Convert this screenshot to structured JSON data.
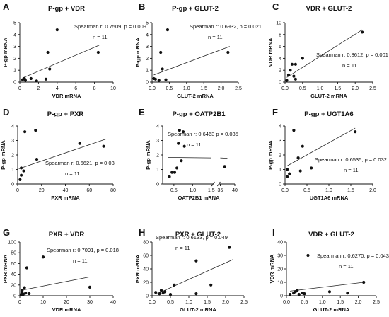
{
  "chart_data": [
    {
      "panel": "A",
      "type": "scatter",
      "title": "P-gp + VDR",
      "xlabel": "VDR mRNA",
      "ylabel": "P-gp mRNA",
      "xlim": [
        0,
        10
      ],
      "ylim": [
        0,
        5
      ],
      "xticks": [
        0,
        2,
        4,
        6,
        8,
        10
      ],
      "yticks": [
        0,
        1,
        2,
        3,
        4,
        5
      ],
      "points": [
        [
          0.3,
          0.2
        ],
        [
          0.5,
          0.3
        ],
        [
          1.2,
          0.3
        ],
        [
          1.8,
          0.1
        ],
        [
          2.8,
          0.25
        ],
        [
          3,
          2.5
        ],
        [
          3.2,
          1.1
        ],
        [
          4,
          4.4
        ],
        [
          8.4,
          2.5
        ],
        [
          0.6,
          0.15
        ]
      ],
      "regression": [
        [
          0.3,
          0.35
        ],
        [
          8.5,
          3.1
        ]
      ],
      "stats": {
        "r": "Spearman r: 0.7509, p = 0.009",
        "n": "n = 11"
      }
    },
    {
      "panel": "B",
      "type": "scatter",
      "title": "P-gp + GLUT-2",
      "xlabel": "GLUT-2 mRNA",
      "ylabel": "P-gp mRNA",
      "xlim": [
        0,
        2.5
      ],
      "ylim": [
        0,
        5
      ],
      "xticks": [
        0.0,
        0.5,
        1.0,
        1.5,
        2.0,
        2.5
      ],
      "yticks": [
        0,
        1,
        2,
        3,
        4,
        5
      ],
      "points": [
        [
          0.05,
          0.3
        ],
        [
          0.1,
          0.25
        ],
        [
          0.2,
          0.15
        ],
        [
          0.25,
          2.5
        ],
        [
          0.3,
          1.1
        ],
        [
          0.4,
          0.2
        ],
        [
          0.45,
          4.4
        ],
        [
          2.2,
          2.5
        ]
      ],
      "regression": [
        [
          0.05,
          0.6
        ],
        [
          2.25,
          3.0
        ]
      ],
      "stats": {
        "r": "Spearman r: 0.6932, p = 0.021",
        "n": "n = 11"
      }
    },
    {
      "panel": "C",
      "type": "scatter",
      "title": "VDR + GLUT-2",
      "xlabel": "GLUT-2 mRNA",
      "ylabel": "VDR mRNA",
      "xlim": [
        0,
        2.5
      ],
      "ylim": [
        0,
        10
      ],
      "xticks": [
        0.0,
        0.5,
        1.0,
        1.5,
        2.0,
        2.5
      ],
      "yticks": [
        0,
        2,
        4,
        6,
        8,
        10
      ],
      "points": [
        [
          0.05,
          0.3
        ],
        [
          0.1,
          1.2
        ],
        [
          0.15,
          2
        ],
        [
          0.2,
          3
        ],
        [
          0.25,
          1
        ],
        [
          0.3,
          3
        ],
        [
          0.3,
          0.5
        ],
        [
          0.5,
          4
        ],
        [
          2.2,
          8.4
        ]
      ],
      "regression": [
        [
          0.05,
          0.8
        ],
        [
          2.2,
          8.8
        ]
      ],
      "stats": {
        "r": "Spearman r: 0.8612, p = 0.001",
        "n": "n = 11"
      }
    },
    {
      "panel": "D",
      "type": "scatter",
      "title": "P-gp + PXR",
      "xlabel": "PXR mRNA",
      "ylabel": "P-gp mRNA",
      "xlim": [
        0,
        80
      ],
      "ylim": [
        0,
        4
      ],
      "xticks": [
        0,
        20,
        40,
        60,
        80
      ],
      "yticks": [
        0,
        1,
        2,
        3,
        4
      ],
      "points": [
        [
          2,
          0.3
        ],
        [
          3,
          0.6
        ],
        [
          3,
          1.1
        ],
        [
          5,
          0.9
        ],
        [
          6,
          3.6
        ],
        [
          15,
          3.7
        ],
        [
          16,
          1.7
        ],
        [
          52,
          2.8
        ],
        [
          72,
          2.6
        ]
      ],
      "regression": [
        [
          1,
          1.05
        ],
        [
          74,
          3.1
        ]
      ],
      "stats": {
        "r": "Spearman r: 0.6621, p = 0.03",
        "n": "n = 11"
      }
    },
    {
      "panel": "E",
      "type": "scatter",
      "title": "P-gp + OATP2B1",
      "xlabel": "OATP2B1 mRNA",
      "ylabel": "P-gp mRNA",
      "xlim": [
        0.2,
        40
      ],
      "ylim": [
        0,
        4
      ],
      "broken_x_axis": true,
      "xticks": [
        "0.5",
        "1.0",
        "1.5",
        "35",
        "40"
      ],
      "yticks": [
        0,
        1,
        2,
        3,
        4
      ],
      "points": [
        [
          0.38,
          0.5
        ],
        [
          0.45,
          0.8
        ],
        [
          0.52,
          0.8
        ],
        [
          0.58,
          1.1
        ],
        [
          0.62,
          2.8
        ],
        [
          0.65,
          3.7
        ],
        [
          0.7,
          1.6
        ],
        [
          0.75,
          3.6
        ],
        [
          0.78,
          2.6
        ],
        [
          36.5,
          1.2
        ]
      ],
      "regression": [
        [
          0.35,
          1.83
        ],
        [
          1.5,
          1.8
        ],
        [
          35,
          1.8
        ]
      ],
      "stats": {
        "r": "Spearman r: 0.6463 p = 0.035",
        "n": "n = 11"
      }
    },
    {
      "panel": "F",
      "type": "scatter",
      "title": "P-gp + UGT1A6",
      "xlabel": "UGT1A6 mRNA",
      "ylabel": "P-gp mRNA",
      "xlim": [
        0,
        2.0
      ],
      "ylim": [
        0,
        4
      ],
      "xticks": [
        0.0,
        0.5,
        1.0,
        1.5,
        2.0
      ],
      "yticks": [
        0,
        1,
        2,
        3,
        4
      ],
      "points": [
        [
          0.05,
          1.0
        ],
        [
          0.05,
          0.5
        ],
        [
          0.1,
          0.7
        ],
        [
          0.2,
          3.7
        ],
        [
          0.3,
          1.8
        ],
        [
          0.35,
          0.9
        ],
        [
          0.4,
          2.6
        ],
        [
          0.6,
          1.1
        ],
        [
          1.6,
          3.6
        ]
      ],
      "regression": [
        [
          0.05,
          1.25
        ],
        [
          1.6,
          3.85
        ]
      ],
      "stats": {
        "r": "Spearman r: 0.6535, p = 0.032",
        "n": "n = 11"
      }
    },
    {
      "panel": "G",
      "type": "scatter",
      "title": "PXR + VDR",
      "xlabel": "VDR mRNA",
      "ylabel": "PXR mRNA",
      "xlim": [
        0,
        40
      ],
      "ylim": [
        0,
        100
      ],
      "xticks": [
        0,
        10,
        20,
        30,
        40
      ],
      "yticks": [
        0,
        20,
        40,
        60,
        80,
        100
      ],
      "points": [
        [
          0.5,
          2
        ],
        [
          1,
          5
        ],
        [
          1,
          10
        ],
        [
          1.5,
          3
        ],
        [
          2,
          15
        ],
        [
          2.5,
          5
        ],
        [
          3,
          52
        ],
        [
          4,
          4
        ],
        [
          10,
          72
        ],
        [
          30,
          16
        ]
      ],
      "regression": [
        [
          0.5,
          10
        ],
        [
          30,
          35
        ]
      ],
      "stats": {
        "r": "Spearman r: 0.7091, p = 0.018",
        "n": "n = 11"
      }
    },
    {
      "panel": "H",
      "type": "scatter",
      "title": "PXR + GLUT-2",
      "xlabel": "GLUT-2 mRNA",
      "ylabel": "PXR mRNA",
      "xlim": [
        0,
        2.5
      ],
      "ylim": [
        0,
        80
      ],
      "xticks": [
        0.0,
        0.5,
        1.0,
        1.5,
        2.0,
        2.5
      ],
      "yticks": [
        0,
        20,
        40,
        60,
        80
      ],
      "points": [
        [
          0.1,
          5
        ],
        [
          0.2,
          3
        ],
        [
          0.25,
          8
        ],
        [
          0.3,
          4
        ],
        [
          0.35,
          6
        ],
        [
          0.5,
          2
        ],
        [
          0.6,
          16
        ],
        [
          1.2,
          52
        ],
        [
          1.2,
          3
        ],
        [
          1.6,
          16
        ],
        [
          2.1,
          72
        ]
      ],
      "regression": [
        [
          0.1,
          2
        ],
        [
          2.2,
          54
        ]
      ],
      "stats": {
        "r": "Spearman r: 0.6133, p = 0.049",
        "n": "n = 11"
      }
    },
    {
      "panel": "I",
      "type": "scatter",
      "title": "VDR + GLUT-2",
      "xlabel": "GLUT-2 mRNA",
      "ylabel": "VDR mRNA",
      "xlim": [
        0,
        2.5
      ],
      "ylim": [
        0,
        40
      ],
      "xticks": [
        0.0,
        0.5,
        1.0,
        1.5,
        2.0,
        2.5
      ],
      "yticks": [
        0,
        10,
        20,
        30,
        40
      ],
      "points": [
        [
          0.1,
          1
        ],
        [
          0.2,
          2
        ],
        [
          0.25,
          3
        ],
        [
          0.3,
          4
        ],
        [
          0.35,
          1
        ],
        [
          0.45,
          2
        ],
        [
          0.6,
          30
        ],
        [
          1.2,
          3
        ],
        [
          1.7,
          2
        ],
        [
          2.15,
          10
        ],
        [
          0.5,
          1.5
        ]
      ],
      "regression": [
        [
          0.1,
          3.5
        ],
        [
          2.15,
          10
        ]
      ],
      "stats": {
        "r": "Spearman r: 0.6270, p = 0.043",
        "n": "n = 11"
      }
    }
  ]
}
